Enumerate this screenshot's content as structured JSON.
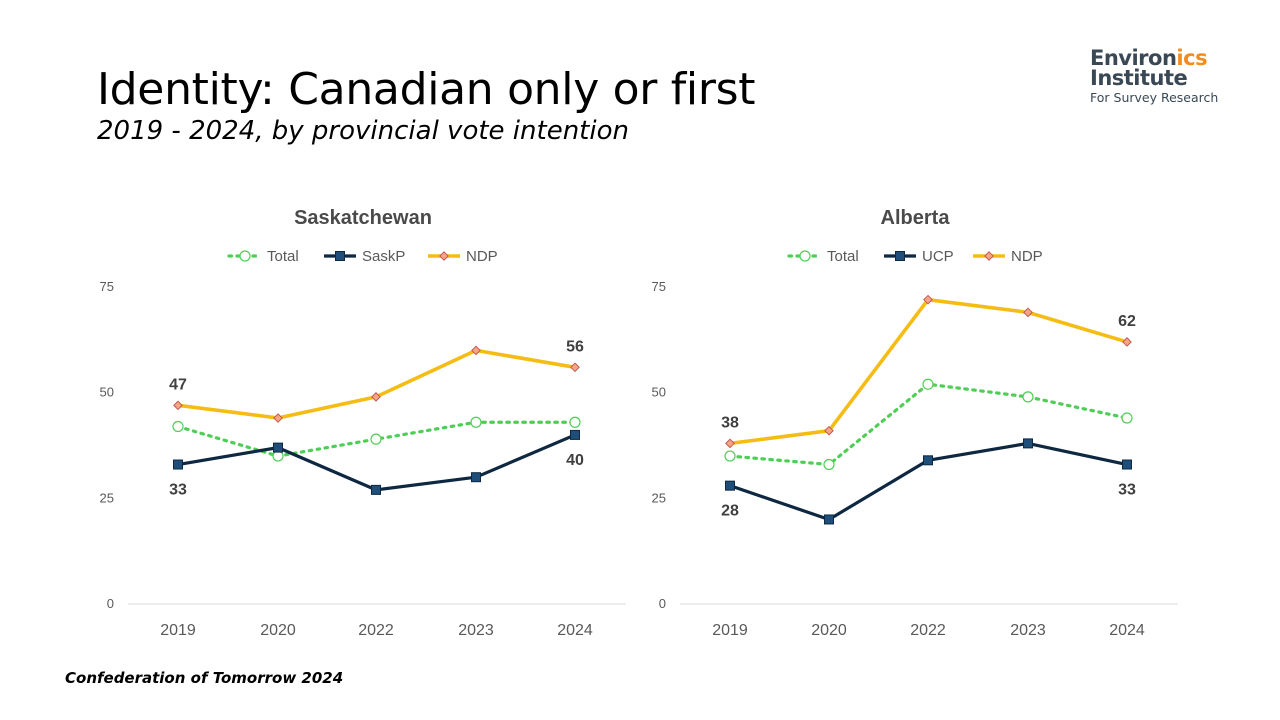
{
  "header": {
    "title": "Identity: Canadian only or first",
    "subtitle": "2019 - 2024, by provincial vote intention"
  },
  "logo": {
    "line1_a": "Environ",
    "line1_b": "ics",
    "line2": "Institute",
    "line3": "For Survey Research"
  },
  "footer": {
    "source": "Confederation of Tomorrow 2024"
  },
  "colors": {
    "total": "#4fce55",
    "party": "#0e2841",
    "party_marker": "#1e4e79",
    "ndp": "#f5bd13",
    "ndp_marker": "#f4a582"
  },
  "chart_data": [
    {
      "type": "line",
      "title": "Saskatchewan",
      "categories": [
        "2019",
        "2020",
        "2022",
        "2023",
        "2024"
      ],
      "ylim": [
        0,
        75
      ],
      "yticks": [
        0,
        25,
        50,
        75
      ],
      "grid": false,
      "legend": "top-center",
      "series": [
        {
          "name": "Total",
          "values": [
            42,
            35,
            39,
            43,
            43
          ]
        },
        {
          "name": "SaskP",
          "values": [
            33,
            37,
            27,
            30,
            40
          ]
        },
        {
          "name": "NDP",
          "values": [
            47,
            44,
            49,
            60,
            56
          ]
        }
      ],
      "data_labels": [
        {
          "series": "NDP",
          "index": 0,
          "text": "47",
          "pos": "above"
        },
        {
          "series": "NDP",
          "index": 4,
          "text": "56",
          "pos": "above"
        },
        {
          "series": "SaskP",
          "index": 0,
          "text": "33",
          "pos": "below"
        },
        {
          "series": "SaskP",
          "index": 4,
          "text": "40",
          "pos": "below"
        }
      ]
    },
    {
      "type": "line",
      "title": "Alberta",
      "categories": [
        "2019",
        "2020",
        "2022",
        "2023",
        "2024"
      ],
      "ylim": [
        0,
        75
      ],
      "yticks": [
        0,
        25,
        50,
        75
      ],
      "grid": false,
      "legend": "top-center",
      "series": [
        {
          "name": "Total",
          "values": [
            35,
            33,
            52,
            49,
            44
          ]
        },
        {
          "name": "UCP",
          "values": [
            28,
            20,
            34,
            38,
            33
          ]
        },
        {
          "name": "NDP",
          "values": [
            38,
            41,
            72,
            69,
            62
          ]
        }
      ],
      "data_labels": [
        {
          "series": "NDP",
          "index": 0,
          "text": "38",
          "pos": "above"
        },
        {
          "series": "NDP",
          "index": 4,
          "text": "62",
          "pos": "above"
        },
        {
          "series": "UCP",
          "index": 0,
          "text": "28",
          "pos": "below"
        },
        {
          "series": "UCP",
          "index": 4,
          "text": "33",
          "pos": "below"
        }
      ]
    }
  ]
}
